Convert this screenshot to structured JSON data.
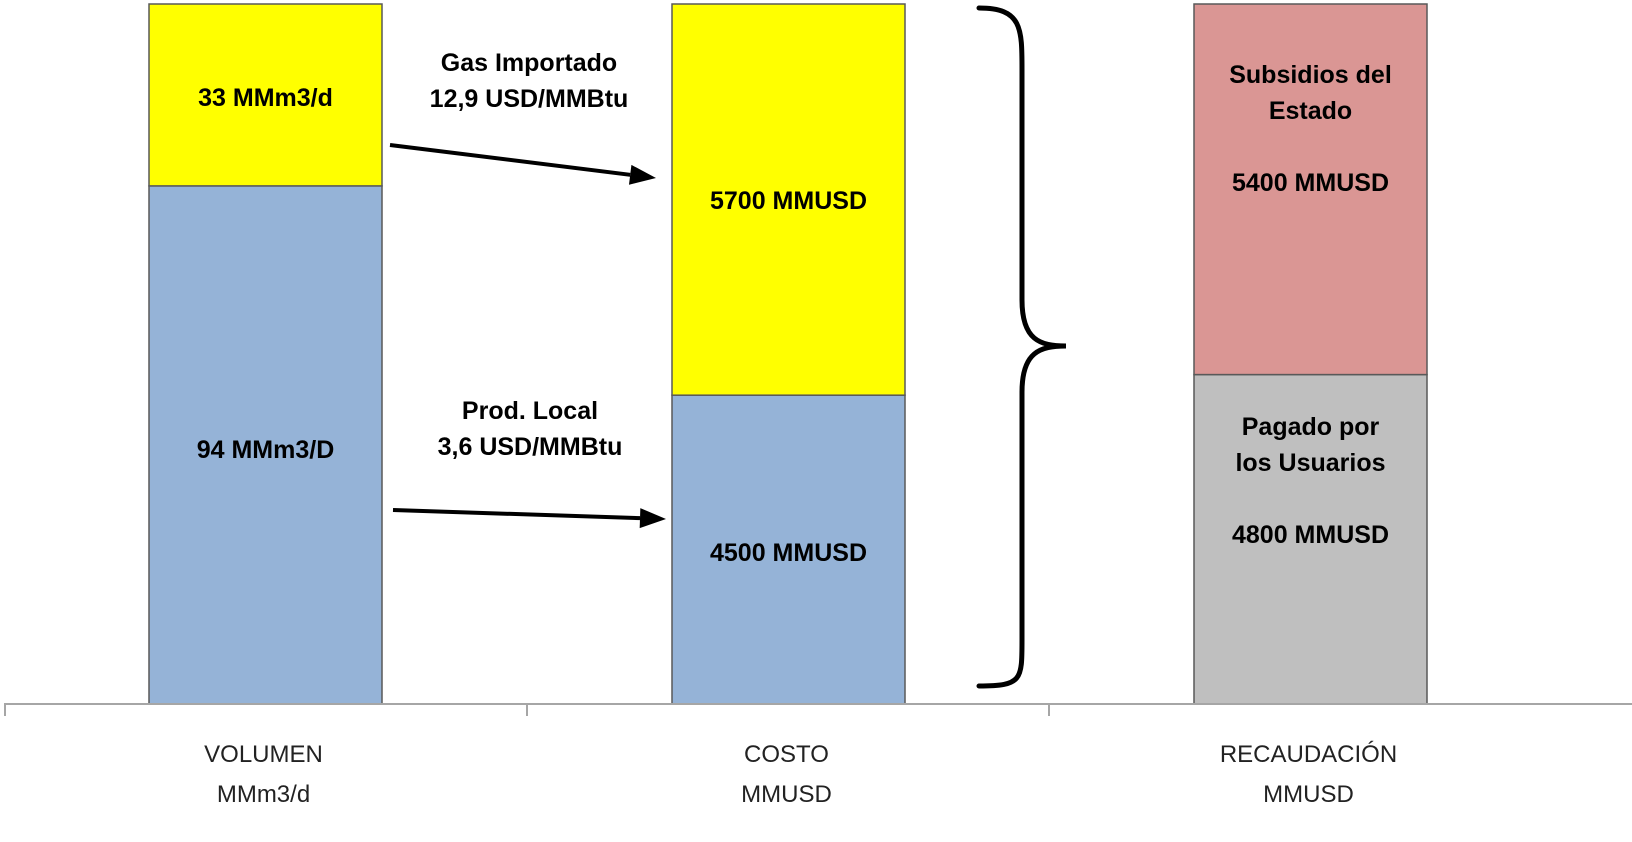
{
  "chart_data": {
    "type": "bar",
    "stacked": true,
    "grid": false,
    "legend": "none",
    "ylim": [
      0,
      10200
    ],
    "categories": [
      {
        "lines": [
          "VOLUMEN",
          "MMm3/d"
        ]
      },
      {
        "lines": [
          "COSTO",
          "MMUSD"
        ]
      },
      {
        "lines": [
          "RECAUDACIÓN",
          "MMUSD"
        ]
      }
    ],
    "bars": [
      {
        "segments": [
          {
            "value": 94,
            "color": "#95b3d7",
            "label_lines": [
              "94 MMm3/D"
            ]
          },
          {
            "value": 33,
            "color": "#ffff00",
            "label_lines": [
              "33 MMm3/d"
            ]
          }
        ]
      },
      {
        "segments": [
          {
            "value": 4500,
            "color": "#95b3d7",
            "label_lines": [
              "4500 MMUSD"
            ]
          },
          {
            "value": 5700,
            "color": "#ffff00",
            "label_lines": [
              "5700 MMUSD"
            ]
          }
        ]
      },
      {
        "segments": [
          {
            "value": 4800,
            "color": "#bfbfbf",
            "label_lines": [
              "Pagado por",
              "los Usuarios",
              "",
              "4800 MMUSD"
            ]
          },
          {
            "value": 5400,
            "color": "#da9694",
            "label_lines": [
              "Subsidios del",
              "Estado",
              "",
              "5400 MMUSD"
            ]
          }
        ]
      }
    ],
    "annotations": [
      {
        "lines": [
          "Gas Importado",
          "12,9 USD/MMBtu"
        ]
      },
      {
        "lines": [
          "Prod. Local",
          "3,6 USD/MMBtu"
        ]
      }
    ]
  }
}
